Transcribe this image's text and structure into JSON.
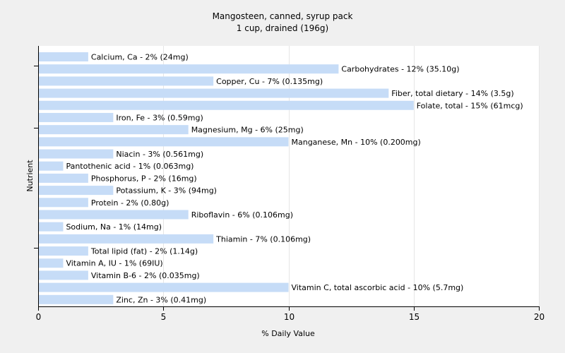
{
  "chart_data": {
    "type": "bar",
    "orientation": "horizontal",
    "title": "Mangosteen, canned, syrup pack",
    "subtitle": "1 cup, drained (196g)",
    "xlabel": "% Daily Value",
    "ylabel": "Nutrient",
    "xlim": [
      0,
      20
    ],
    "xticks": [
      0,
      5,
      10,
      15,
      20
    ],
    "grid": "vertical",
    "bar_color": "#c6dcf7",
    "categories": [
      "Calcium, Ca",
      "Carbohydrates",
      "Copper, Cu",
      "Fiber, total dietary",
      "Folate, total",
      "Iron, Fe",
      "Magnesium, Mg",
      "Manganese, Mn",
      "Niacin",
      "Pantothenic acid",
      "Phosphorus, P",
      "Potassium, K",
      "Protein",
      "Riboflavin",
      "Sodium, Na",
      "Thiamin",
      "Total lipid (fat)",
      "Vitamin A, IU",
      "Vitamin B-6",
      "Vitamin C, total ascorbic acid",
      "Zinc, Zn"
    ],
    "values": [
      2,
      12,
      7,
      14,
      15,
      3,
      6,
      10,
      3,
      1,
      2,
      3,
      2,
      6,
      1,
      7,
      2,
      1,
      2,
      10,
      3
    ],
    "labels": [
      "Calcium, Ca - 2% (24mg)",
      "Carbohydrates - 12% (35.10g)",
      "Copper, Cu - 7% (0.135mg)",
      "Fiber, total dietary - 14% (3.5g)",
      "Folate, total - 15% (61mcg)",
      "Iron, Fe - 3% (0.59mg)",
      "Magnesium, Mg - 6% (25mg)",
      "Manganese, Mn - 10% (0.200mg)",
      "Niacin - 3% (0.561mg)",
      "Pantothenic acid - 1% (0.063mg)",
      "Phosphorus, P - 2% (16mg)",
      "Potassium, K - 3% (94mg)",
      "Protein - 2% (0.80g)",
      "Riboflavin - 6% (0.106mg)",
      "Sodium, Na - 1% (14mg)",
      "Thiamin - 7% (0.106mg)",
      "Total lipid (fat) - 2% (1.14g)",
      "Vitamin A, IU - 1% (69IU)",
      "Vitamin B-6 - 2% (0.035mg)",
      "Vitamin C, total ascorbic acid - 10% (5.7mg)",
      "Zinc, Zn - 3% (0.41mg)"
    ]
  }
}
